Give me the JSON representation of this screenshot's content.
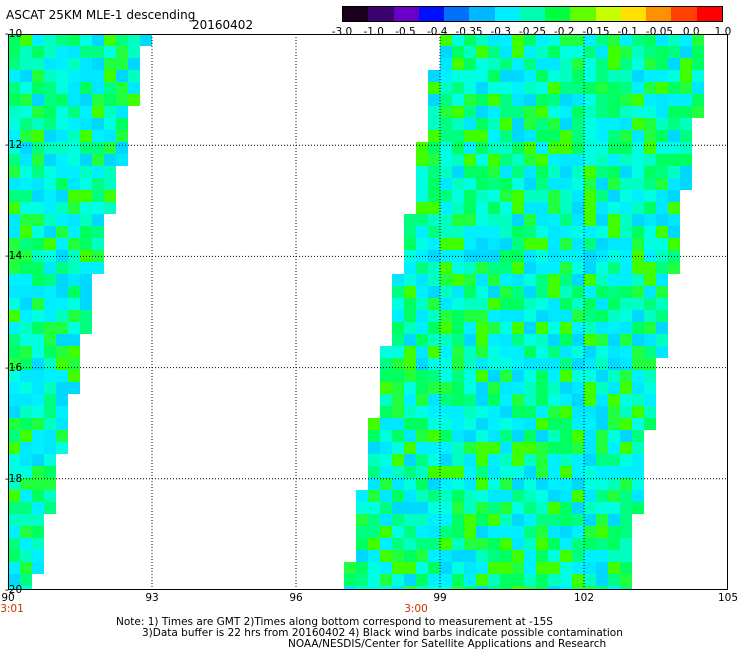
{
  "header": {
    "title": "ASCAT 25KM MLE-1 descending",
    "date": "20160402"
  },
  "colorbar": {
    "labels": [
      "-3.0",
      "-1.0",
      "-0.5",
      "-0.4",
      "-0.35",
      "-0.3",
      "-0.25",
      "-0.2",
      "-0.15",
      "-0.1",
      "-0.05",
      "0.0",
      "1.0"
    ],
    "colors": [
      "#1a001a",
      "#3a0070",
      "#6a00c8",
      "#0010ff",
      "#0070ff",
      "#00b8ff",
      "#00f0ff",
      "#00ffb0",
      "#00ff40",
      "#60ff00",
      "#c8ff00",
      "#ffe000",
      "#ff9000",
      "#ff4000",
      "#ff0000"
    ]
  },
  "map": {
    "lat_labels": [
      "-10",
      "-12",
      "-14",
      "-16",
      "-18",
      "-20"
    ],
    "lon_labels": [
      "90",
      "93",
      "96",
      "99",
      "102",
      "105"
    ],
    "lat_range": [
      -20,
      -10
    ],
    "lon_range": [
      90,
      105
    ],
    "pass_times": [
      {
        "label": "3:01",
        "lon": 90
      },
      {
        "label": "3:00",
        "lon": 98.5
      }
    ],
    "swath_colors": [
      "#00ffe0",
      "#00f0ff",
      "#00ffc0",
      "#00ff80",
      "#00ff60",
      "#40ff00",
      "#00e8ff",
      "#00d8ff",
      "#20ff40"
    ]
  },
  "notes": {
    "line1": "Note: 1) Times are GMT 2)Times along bottom correspond to measurement at -15S",
    "line2": "3)Data buffer is 22 hrs from 20160402 4) Black wind barbs indicate possible contamination",
    "line3": "NOAA/NESDIS/Center for Satellite Applications and Research"
  }
}
